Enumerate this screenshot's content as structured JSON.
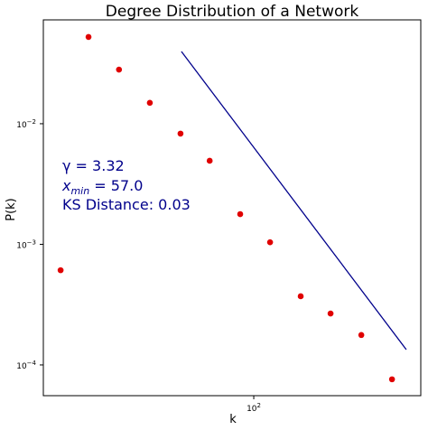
{
  "chart_data": {
    "type": "scatter",
    "title": "Degree Distribution of a Network",
    "x_label": "k",
    "y_label": "P(k)",
    "log_x": true,
    "log_y": true,
    "xlim": [
      19.5,
      366
    ],
    "ylim": [
      5.56e-05,
      0.0726
    ],
    "xticks": [
      {
        "value": 100,
        "label": "10",
        "exponent": "2"
      }
    ],
    "yticks": [
      {
        "value": 0.0001,
        "label": "10",
        "exponent": "−4"
      },
      {
        "value": 0.001,
        "label": "10",
        "exponent": "−3"
      },
      {
        "value": 0.01,
        "label": "10",
        "exponent": "−2"
      }
    ],
    "series": [
      {
        "type": "scatter",
        "color": "#e00000",
        "x": [
          22.3,
          27.7,
          35.1,
          44.6,
          56.6,
          71,
          90,
          113.5,
          144,
          181.6,
          230.6,
          292.7
        ],
        "values": [
          0.00061,
          0.0524,
          0.0281,
          0.0149,
          0.00828,
          0.00493,
          0.00178,
          0.00104,
          0.000371,
          0.000267,
          0.000177,
          7.6e-05
        ]
      },
      {
        "type": "line",
        "color": "#00008b",
        "x": [
          57,
          327
        ],
        "values": [
          0.0397,
          0.000134
        ]
      }
    ],
    "annotations": [
      "γ =  3.32",
      [
        "x",
        "min",
        " = 57.0"
      ],
      "KS Distance: 0.03"
    ],
    "annotation_color": "#00008b"
  }
}
